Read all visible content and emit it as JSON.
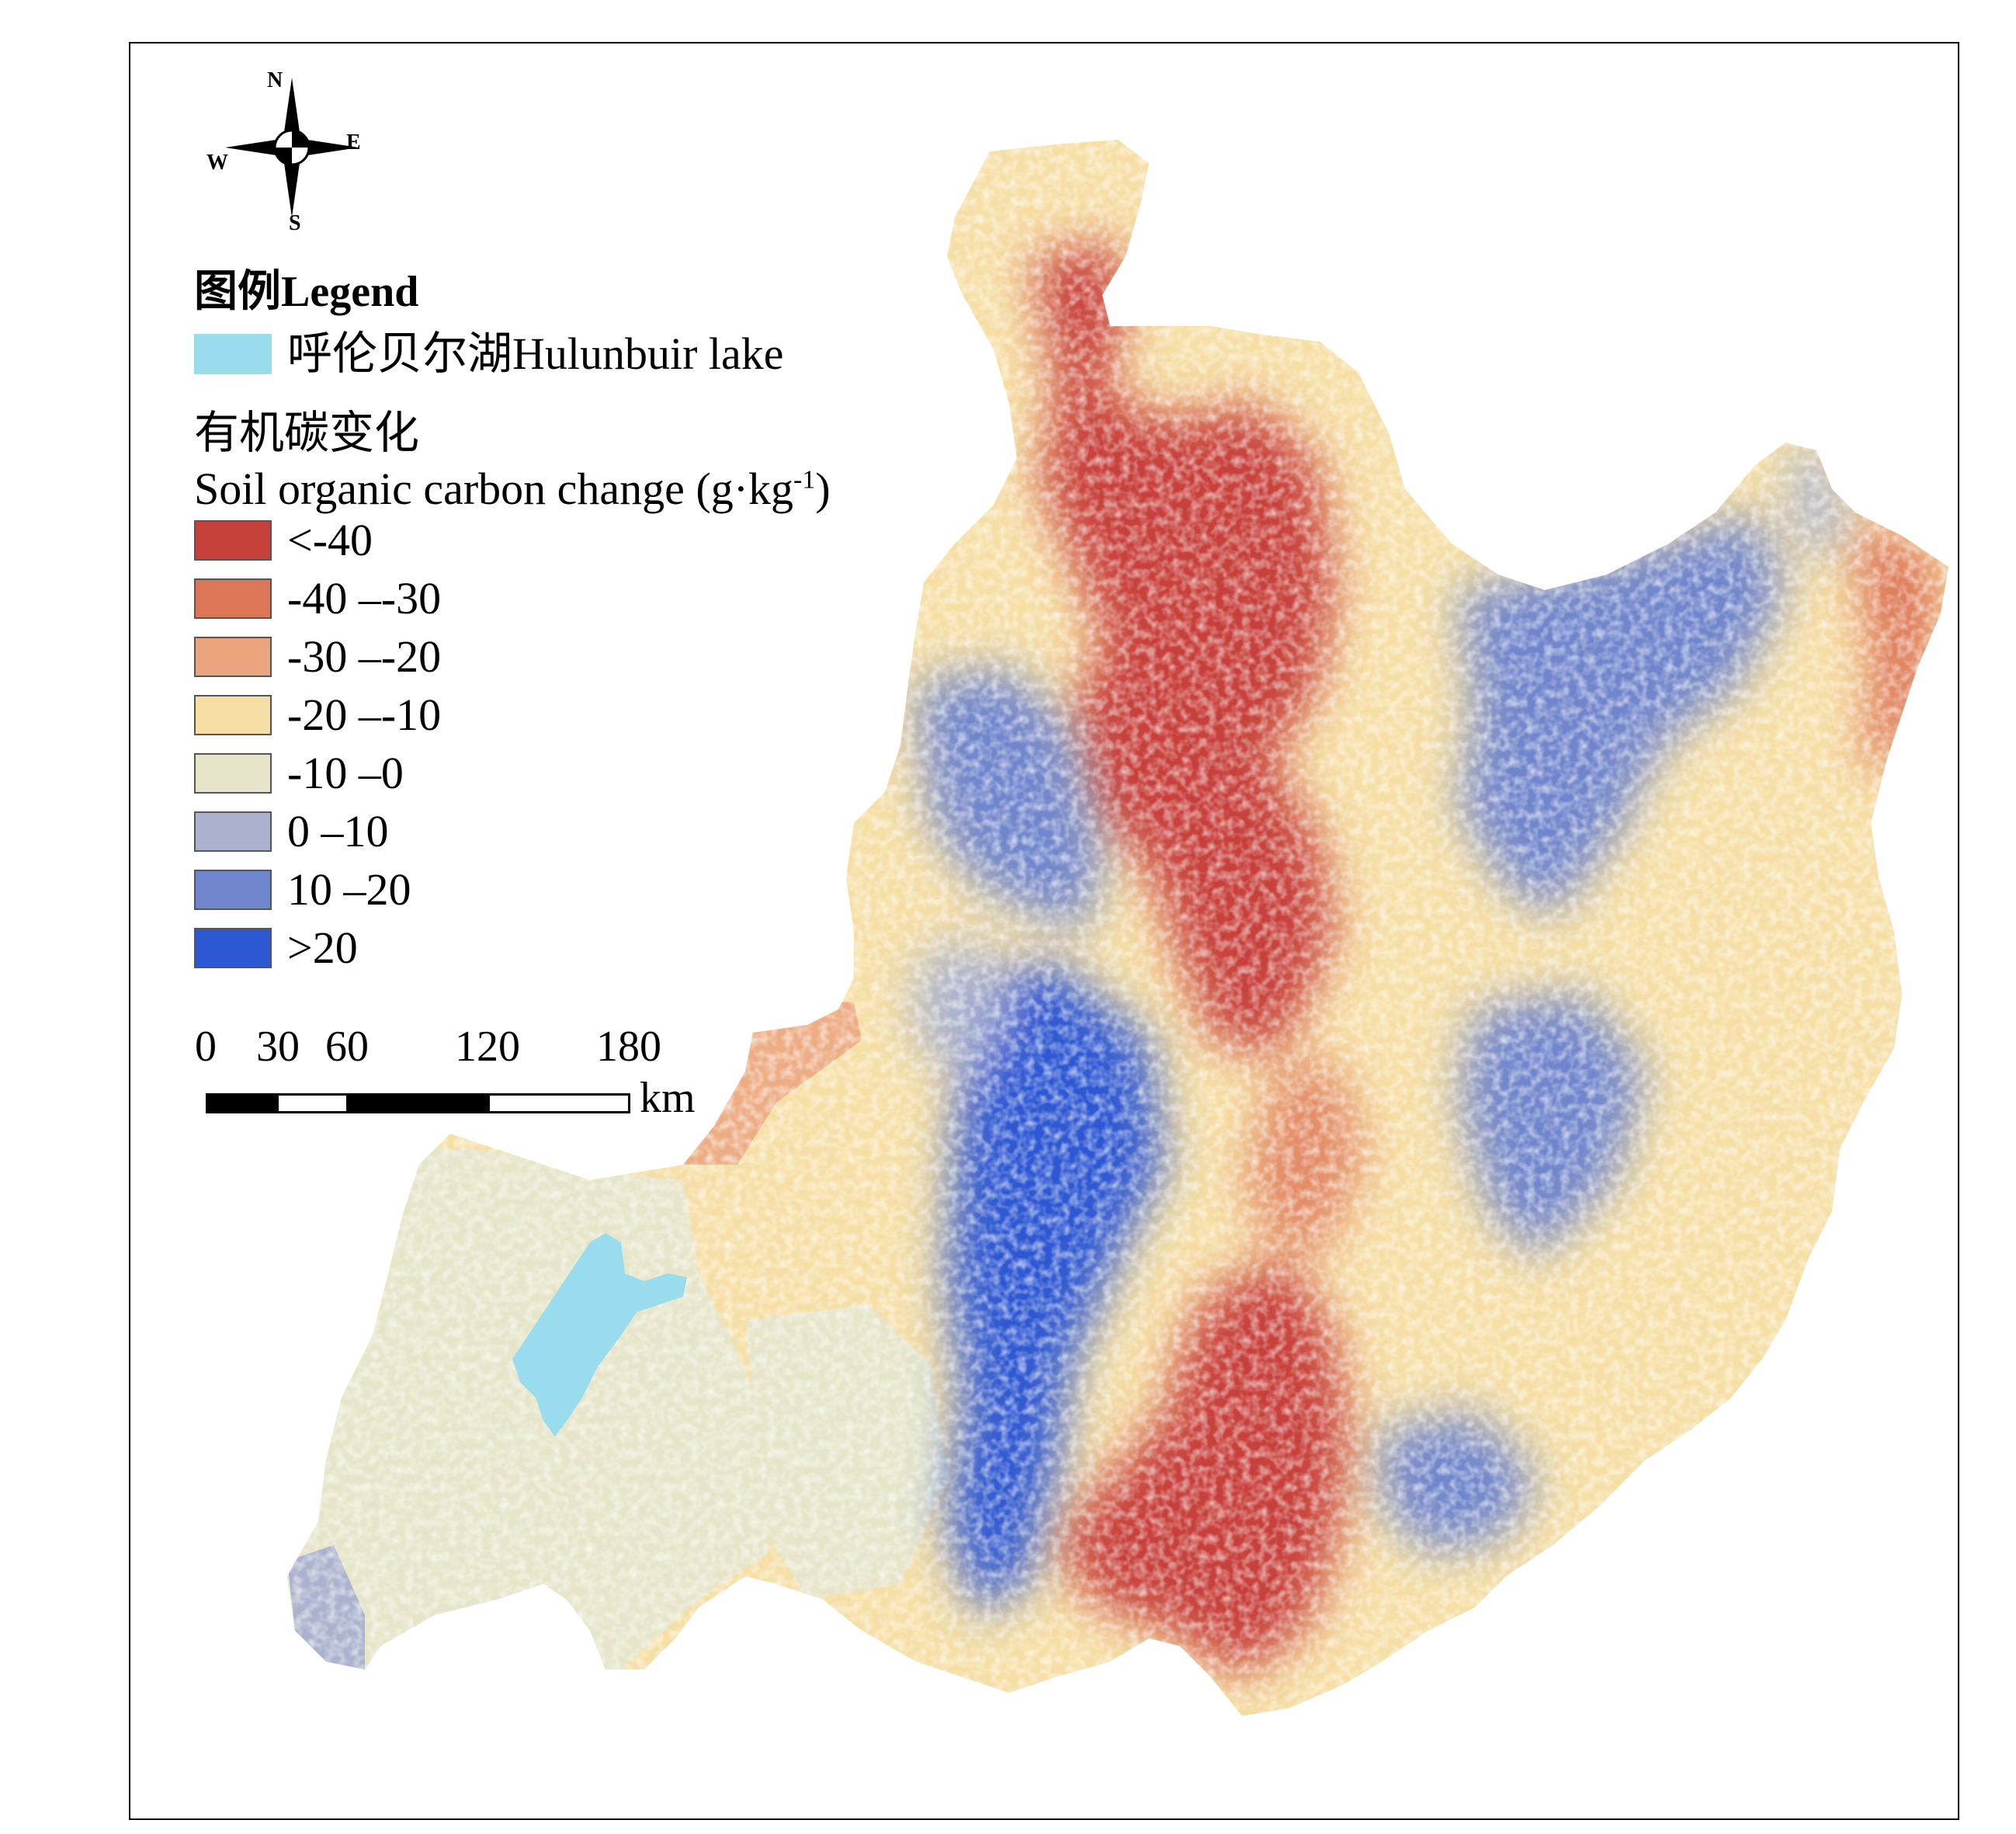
{
  "compass": {
    "n": "N",
    "s": "S",
    "e": "E",
    "w": "W"
  },
  "legend": {
    "title": "图例Legend",
    "lake_label": "呼伦贝尔湖Hulunbuir lake",
    "lake_color": "#99dcee",
    "soc_title_cn": "有机碳变化",
    "soc_title_en": "Soil organic carbon change (g·kg",
    "soc_title_sup": "-1",
    "soc_title_close": ")",
    "classes": [
      {
        "label": "<-40",
        "color": "#c8403a"
      },
      {
        "label": "-40 –-30",
        "color": "#dd7656"
      },
      {
        "label": "-30 –-20",
        "color": "#eba57e"
      },
      {
        "label": "-20 –-10",
        "color": "#f6dfa5"
      },
      {
        "label": "-10 –0",
        "color": "#e6e5c9"
      },
      {
        "label": "0 –10",
        "color": "#aab2cd"
      },
      {
        "label": "10 –20",
        "color": "#6f85cc"
      },
      {
        "label": ">20",
        "color": "#2e58d3"
      }
    ]
  },
  "scalebar": {
    "ticks": [
      "0",
      "30",
      "60",
      "120",
      "180"
    ],
    "unit": "km"
  }
}
